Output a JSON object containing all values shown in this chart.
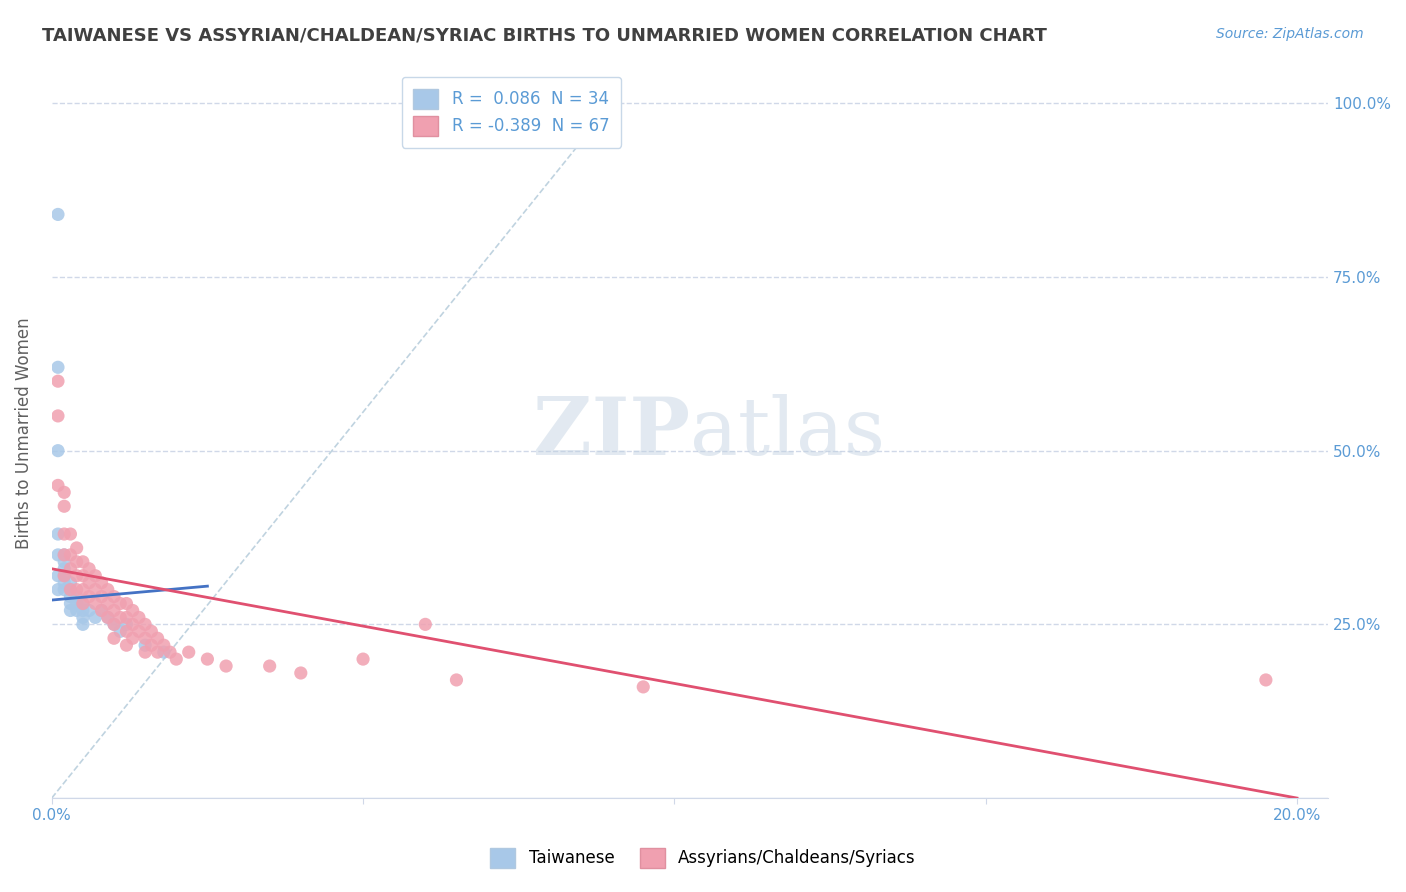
{
  "title": "TAIWANESE VS ASSYRIAN/CHALDEAN/SYRIAC BIRTHS TO UNMARRIED WOMEN CORRELATION CHART",
  "source": "Source: ZipAtlas.com",
  "ylabel": "Births to Unmarried Women",
  "y_ticks": [
    0,
    25,
    50,
    75,
    100
  ],
  "y_tick_labels": [
    "",
    "25.0%",
    "50.0%",
    "75.0%",
    "100.0%"
  ],
  "background_color": "#ffffff",
  "plot_bg_color": "#ffffff",
  "grid_color": "#d0d8e8",
  "title_color": "#404040",
  "axis_color": "#5b9bd5",
  "legend_r1": "R =  0.086",
  "legend_n1": "N = 34",
  "legend_r2": "R = -0.389",
  "legend_n2": "N = 67",
  "scatter_blue_color": "#a8c8e8",
  "scatter_pink_color": "#f0a0b0",
  "line_blue_color": "#4472c4",
  "line_pink_color": "#e05070",
  "blue_scatter_x": [
    0.1,
    0.1,
    0.1,
    0.1,
    0.1,
    0.1,
    0.1,
    0.2,
    0.2,
    0.2,
    0.2,
    0.2,
    0.2,
    0.3,
    0.3,
    0.3,
    0.3,
    0.3,
    0.4,
    0.4,
    0.4,
    0.5,
    0.5,
    0.5,
    0.5,
    0.6,
    0.7,
    0.8,
    0.9,
    1.0,
    1.1,
    1.2,
    1.5,
    1.8
  ],
  "blue_scatter_y": [
    84,
    62,
    50,
    38,
    35,
    32,
    30,
    35,
    34,
    33,
    32,
    31,
    30,
    31,
    30,
    29,
    28,
    27,
    29,
    28,
    27,
    28,
    27,
    26,
    25,
    27,
    26,
    27,
    26,
    25,
    24,
    25,
    22,
    21
  ],
  "pink_scatter_x": [
    0.1,
    0.1,
    0.1,
    0.2,
    0.2,
    0.2,
    0.2,
    0.2,
    0.3,
    0.3,
    0.3,
    0.3,
    0.4,
    0.4,
    0.4,
    0.4,
    0.5,
    0.5,
    0.5,
    0.5,
    0.6,
    0.6,
    0.6,
    0.7,
    0.7,
    0.7,
    0.8,
    0.8,
    0.8,
    0.9,
    0.9,
    0.9,
    1.0,
    1.0,
    1.0,
    1.0,
    1.1,
    1.1,
    1.2,
    1.2,
    1.2,
    1.2,
    1.3,
    1.3,
    1.3,
    1.4,
    1.4,
    1.5,
    1.5,
    1.5,
    1.6,
    1.6,
    1.7,
    1.7,
    1.8,
    1.9,
    2.0,
    2.2,
    2.5,
    2.8,
    3.5,
    4.0,
    5.0,
    6.5,
    9.5,
    19.5,
    6.0
  ],
  "pink_scatter_y": [
    60,
    55,
    45,
    44,
    42,
    38,
    35,
    32,
    38,
    35,
    33,
    30,
    36,
    34,
    32,
    30,
    34,
    32,
    30,
    28,
    33,
    31,
    29,
    32,
    30,
    28,
    31,
    29,
    27,
    30,
    28,
    26,
    29,
    27,
    25,
    23,
    28,
    26,
    28,
    26,
    24,
    22,
    27,
    25,
    23,
    26,
    24,
    25,
    23,
    21,
    24,
    22,
    23,
    21,
    22,
    21,
    20,
    21,
    20,
    19,
    19,
    18,
    20,
    17,
    16,
    17,
    25
  ],
  "blue_line_x": [
    0.0,
    2.5
  ],
  "blue_line_y": [
    28.5,
    30.5
  ],
  "pink_line_x": [
    0.0,
    20.0
  ],
  "pink_line_y": [
    33.0,
    0.0
  ],
  "diag_line_x": [
    0.0,
    9.0
  ],
  "diag_line_y": [
    0.0,
    100.0
  ],
  "xlim": [
    0.0,
    20.5
  ],
  "ylim": [
    0.0,
    105
  ]
}
